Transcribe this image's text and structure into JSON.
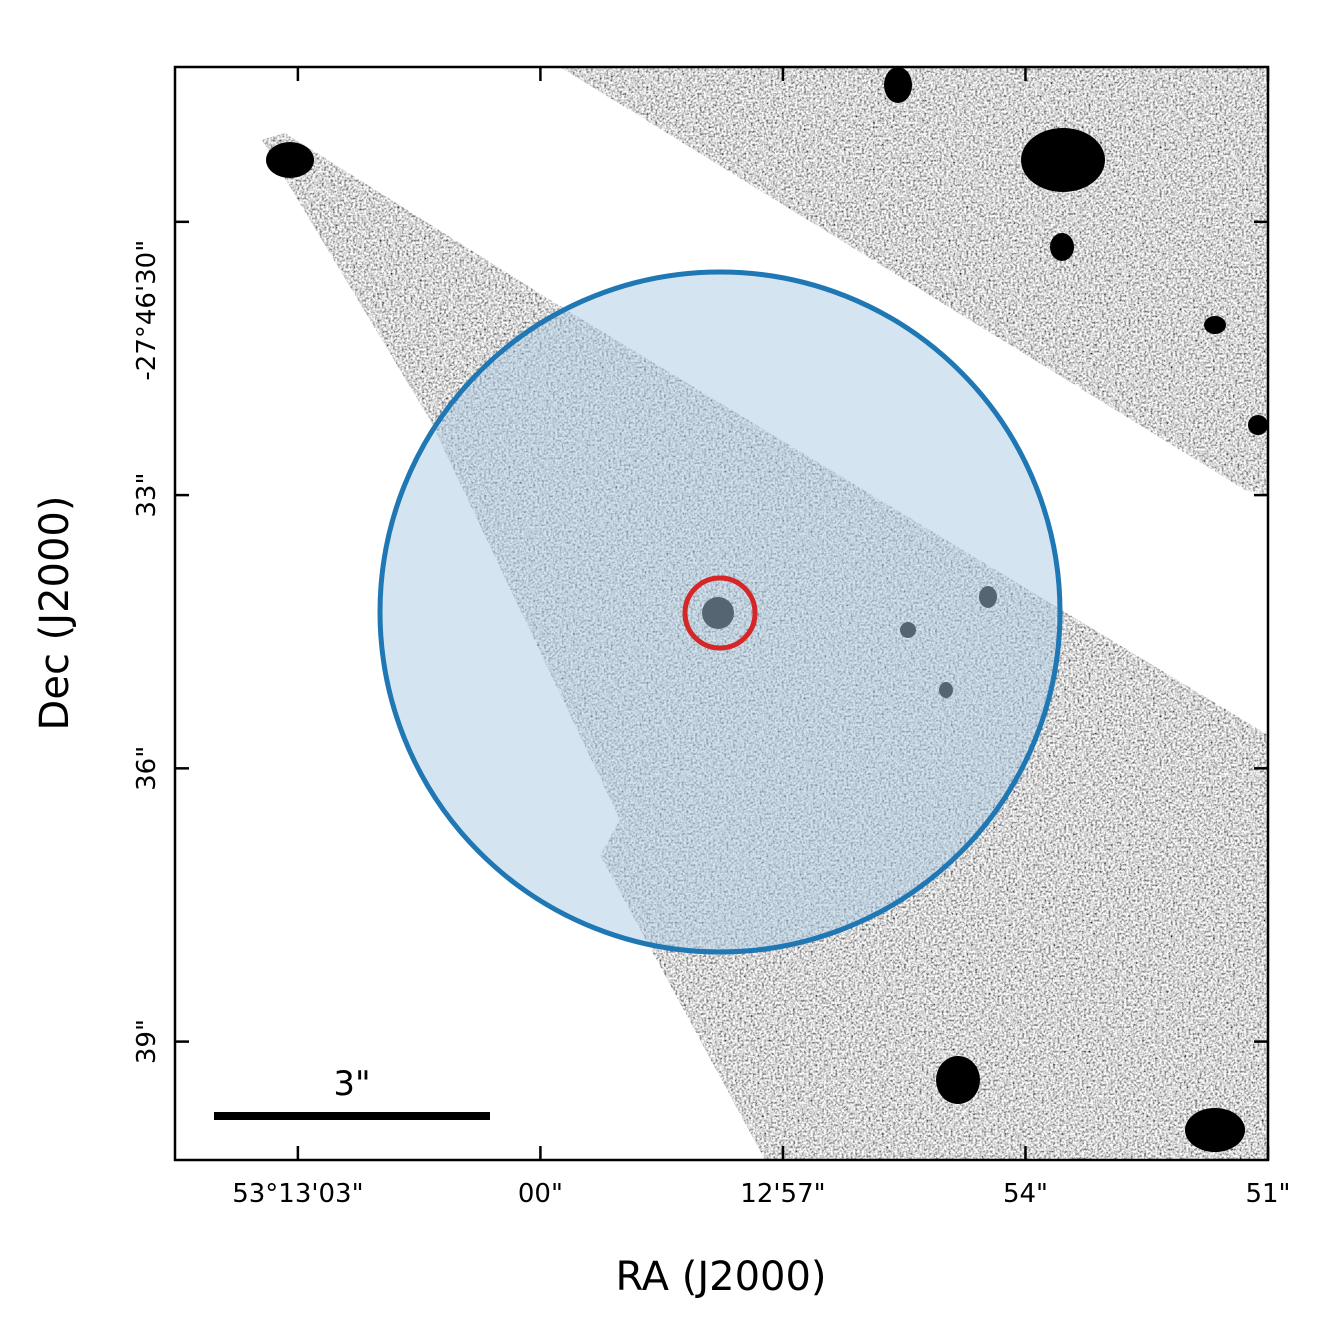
{
  "chart_data": {
    "type": "image",
    "xlabel": "RA (J2000)",
    "ylabel": "Dec (J2000)",
    "xlim": [
      191584.52,
      191571
    ],
    "ylim": [
      -100000.3,
      -99988.3
    ],
    "xticks": [
      {
        "value": 191583,
        "label": "53°13'03\""
      },
      {
        "value": 191580,
        "label": "00\""
      },
      {
        "value": 191577,
        "label": "12'57\""
      },
      {
        "value": 191574,
        "label": "54\""
      },
      {
        "value": 191571,
        "label": "51\""
      }
    ],
    "yticks": [
      {
        "value": -99990,
        "label": "-27°46'30\""
      },
      {
        "value": -99993,
        "label": "33\""
      },
      {
        "value": -99996,
        "label": "36\""
      },
      {
        "value": -99999,
        "label": "39\""
      }
    ],
    "scalebar_label": "3\""
  }
}
